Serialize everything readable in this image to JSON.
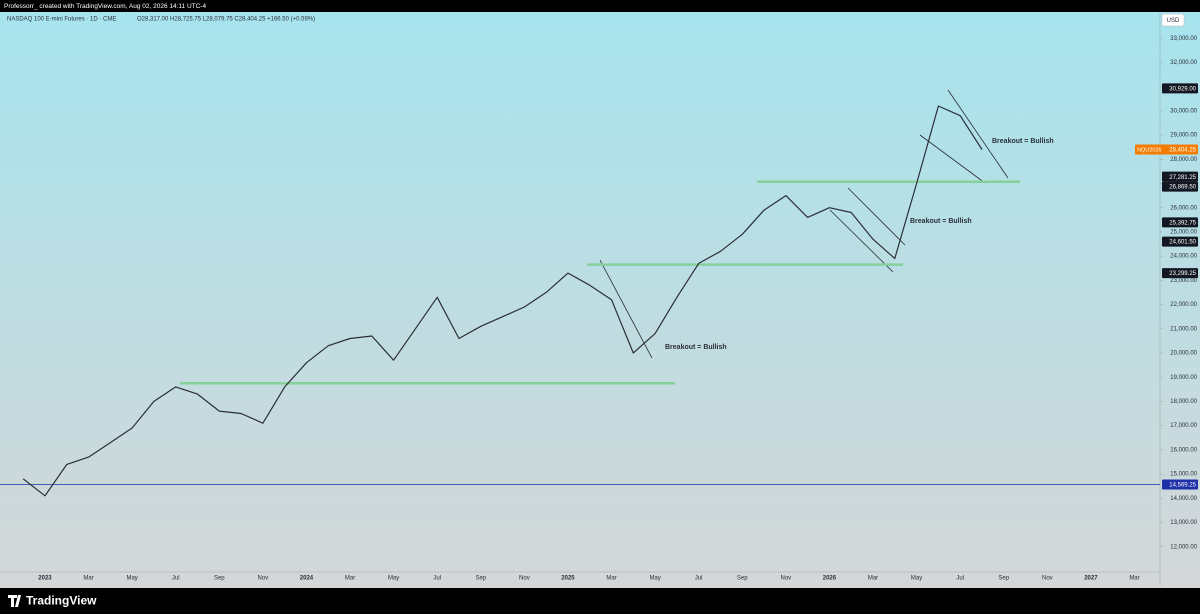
{
  "header": {
    "credit": "Professorr_ created with TradingView.com, Aug 02, 2026 14:11 UTC-4",
    "currency": "USD",
    "brand": "TradingView"
  },
  "chart_data": {
    "type": "line",
    "title": "NASDAQ 100 E-mini Futures · 1D · CME",
    "ohlc_text": "O28,317.00 H28,725.75 L28,079.75 C28,404.25 +166.50 (+0.59%)",
    "categories": [
      null,
      "2023",
      null,
      "Mar",
      null,
      "May",
      null,
      "Jul",
      null,
      "Sep",
      null,
      "Nov",
      null,
      "2024",
      null,
      "Mar",
      null,
      "May",
      null,
      "Jul",
      null,
      "Sep",
      null,
      "Nov",
      null,
      "2025",
      null,
      "Mar",
      null,
      "May",
      null,
      "Jul",
      null,
      "Sep",
      null,
      "Nov",
      null,
      "2026",
      null,
      "Mar",
      null,
      "May",
      null,
      "Jul",
      null,
      "Sep",
      null,
      "Nov",
      null,
      "2027",
      null,
      "Mar"
    ],
    "series": [
      {
        "name": "NQU2026",
        "color": "#2a2e39",
        "values": [
          14800,
          14100,
          15400,
          15700,
          16300,
          16900,
          18000,
          18600,
          18300,
          17600,
          17500,
          17100,
          18600,
          19600,
          20300,
          20600,
          20700,
          19700,
          21000,
          22300,
          20600,
          21100,
          21500,
          21900,
          22500,
          23300,
          22800,
          22200,
          20000,
          20800,
          22300,
          23700,
          24200,
          24900,
          25900,
          26500,
          25600,
          26000,
          25800,
          24700,
          23900,
          27000,
          30200,
          29800,
          28404.25,
          null,
          null,
          null,
          null,
          null,
          null,
          null
        ]
      }
    ],
    "ylim": [
      10500,
      34000
    ],
    "yticks": [
      {
        "value": 12000,
        "label": "12,000.00"
      },
      {
        "value": 13000,
        "label": "13,000.00"
      },
      {
        "value": 14000,
        "label": "14,000.00"
      },
      {
        "value": 15000,
        "label": "15,000.00"
      },
      {
        "value": 16000,
        "label": "16,000.00"
      },
      {
        "value": 17000,
        "label": "17,000.00"
      },
      {
        "value": 18000,
        "label": "18,000.00"
      },
      {
        "value": 19000,
        "label": "19,000.00"
      },
      {
        "value": 20000,
        "label": "20,000.00"
      },
      {
        "value": 21000,
        "label": "21,000.00"
      },
      {
        "value": 22000,
        "label": "22,000.00"
      },
      {
        "value": 23000,
        "label": "23,000.00"
      },
      {
        "value": 24000,
        "label": "24,000.00"
      },
      {
        "value": 25000,
        "label": "25,000.00"
      },
      {
        "value": 26000,
        "label": "26,000.00"
      },
      {
        "value": 27000,
        "label": "27,000.00"
      },
      {
        "value": 28000,
        "label": "28,000.00"
      },
      {
        "value": 29000,
        "label": "29,000.00"
      },
      {
        "value": 30000,
        "label": "30,000.00"
      },
      {
        "value": 31000,
        "label": "31,000.00"
      },
      {
        "value": 32000,
        "label": "32,000.00"
      },
      {
        "value": 33000,
        "label": "33,000.00"
      }
    ],
    "grid": false,
    "price_labels": [
      {
        "value": 30929,
        "label": "30,929.00"
      },
      {
        "value": 27281.25,
        "label": "27,281.25"
      },
      {
        "value": 26869.5,
        "label": "26,869.50"
      },
      {
        "value": 25392.75,
        "label": "25,392.75"
      },
      {
        "value": 24601.5,
        "label": "24,601.50"
      },
      {
        "value": 23299.25,
        "label": "23,299.25"
      }
    ],
    "last_price": {
      "symbol": "NQU2026",
      "value": 28404.25,
      "label": "28,404.25",
      "color": "#f57c00"
    },
    "horizontal_line": {
      "value": 14569.25,
      "label": "14,569.25",
      "color": "#1e2fa8"
    },
    "levels": [
      18750,
      23650,
      27070
    ],
    "level_color": "#86d19a",
    "annotations": [
      "Breakout = Bullish",
      "Breakout = Bullish",
      "Breakout = Bullish"
    ]
  }
}
